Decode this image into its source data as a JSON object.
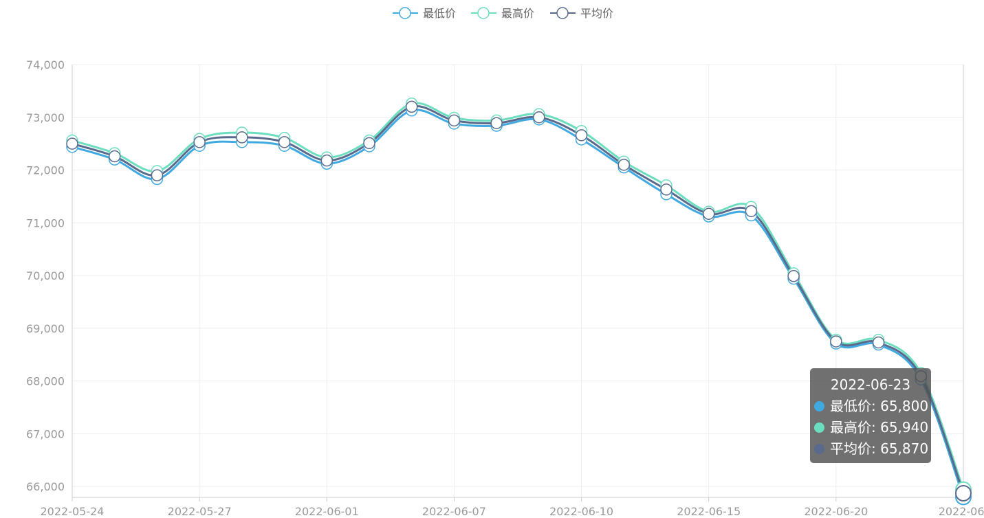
{
  "legend": [
    {
      "label": "最低价",
      "color": "#40A9E0"
    },
    {
      "label": "最高价",
      "color": "#6CDEC0"
    },
    {
      "label": "平均价",
      "color": "#5A6A8C"
    }
  ],
  "tooltip": {
    "date": "2022-06-23",
    "rows": [
      {
        "label": "最低价",
        "value": "65,800",
        "color": "#40A9E0"
      },
      {
        "label": "最高价",
        "value": "65,940",
        "color": "#6CDEC0"
      },
      {
        "label": "平均价",
        "value": "65,870",
        "color": "#5A6A8C"
      }
    ]
  },
  "chart_data": {
    "type": "line",
    "x": [
      "2022-05-24",
      "2022-05-25",
      "2022-05-26",
      "2022-05-27",
      "2022-05-30",
      "2022-05-31",
      "2022-06-01",
      "2022-06-02",
      "2022-06-06",
      "2022-06-07",
      "2022-06-08",
      "2022-06-09",
      "2022-06-10",
      "2022-06-13",
      "2022-06-14",
      "2022-06-15",
      "2022-06-16",
      "2022-06-17",
      "2022-06-20",
      "2022-06-21",
      "2022-06-22",
      "2022-06-23"
    ],
    "x_tick_labels": [
      "2022-05-24",
      "2022-05-27",
      "2022-06-01",
      "2022-06-07",
      "2022-06-10",
      "2022-06-15",
      "2022-06-20",
      "2022-06-"
    ],
    "series": [
      {
        "name": "最低价",
        "color": "#40A9E0",
        "values": [
          72440,
          72200,
          71830,
          72460,
          72530,
          72460,
          72120,
          72450,
          73130,
          72880,
          72840,
          72960,
          72580,
          72050,
          71540,
          71120,
          71140,
          69940,
          68710,
          68690,
          68030,
          65800
        ]
      },
      {
        "name": "最高价",
        "color": "#6CDEC0",
        "values": [
          72560,
          72320,
          71980,
          72590,
          72710,
          72610,
          72240,
          72560,
          73260,
          72990,
          72940,
          73060,
          72740,
          72160,
          71710,
          71210,
          71300,
          70040,
          68780,
          68780,
          68150,
          65940
        ]
      },
      {
        "name": "平均价",
        "color": "#5A6A8C",
        "values": [
          72500,
          72260,
          71900,
          72530,
          72620,
          72530,
          72180,
          72510,
          73200,
          72940,
          72890,
          73000,
          72660,
          72100,
          71630,
          71170,
          71220,
          69990,
          68750,
          68730,
          68090,
          65870
        ]
      }
    ],
    "ylim": [
      66000,
      74000
    ],
    "yticks": [
      66000,
      67000,
      68000,
      69000,
      70000,
      71000,
      72000,
      73000,
      74000
    ],
    "ytick_labels": [
      "66,000",
      "67,000",
      "68,000",
      "69,000",
      "70,000",
      "71,000",
      "72,000",
      "73,000",
      "74,000"
    ],
    "grid": true,
    "legend_position": "top-center",
    "title": "",
    "xlabel": "",
    "ylabel": ""
  }
}
